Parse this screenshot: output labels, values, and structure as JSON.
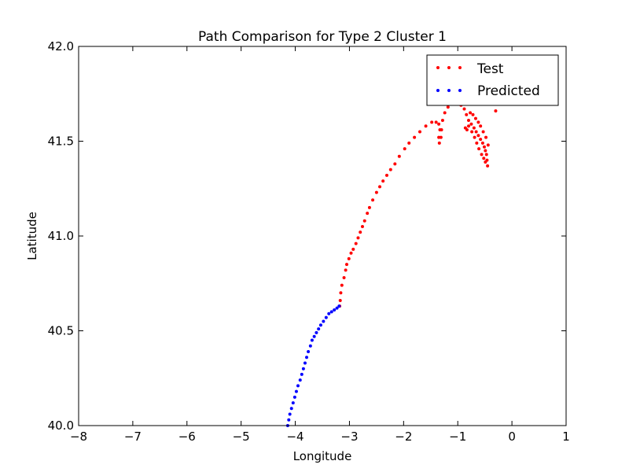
{
  "chart_data": {
    "type": "scatter",
    "title": "Path Comparison for Type 2 Cluster 1",
    "xlabel": "Longitude",
    "ylabel": "Latitude",
    "xlim": [
      -8,
      1
    ],
    "ylim": [
      40.0,
      42.0
    ],
    "xticks": [
      -8,
      -7,
      -6,
      -5,
      -4,
      -3,
      -2,
      -1,
      0,
      1
    ],
    "xtick_labels": [
      "−8",
      "−7",
      "−6",
      "−5",
      "−4",
      "−3",
      "−2",
      "−1",
      "0",
      "1"
    ],
    "yticks": [
      40.0,
      40.5,
      41.0,
      41.5,
      42.0
    ],
    "ytick_labels": [
      "40.0",
      "40.5",
      "41.0",
      "41.5",
      "42.0"
    ],
    "grid": false,
    "legend_position": "top-right",
    "series": [
      {
        "name": "Test",
        "color": "#ff0000",
        "points": [
          [
            -3.18,
            40.63
          ],
          [
            -3.17,
            40.66
          ],
          [
            -3.16,
            40.7
          ],
          [
            -3.14,
            40.74
          ],
          [
            -3.1,
            40.78
          ],
          [
            -3.07,
            40.82
          ],
          [
            -3.05,
            40.85
          ],
          [
            -3.01,
            40.88
          ],
          [
            -2.97,
            40.91
          ],
          [
            -2.93,
            40.93
          ],
          [
            -2.88,
            40.96
          ],
          [
            -2.84,
            40.99
          ],
          [
            -2.8,
            41.02
          ],
          [
            -2.76,
            41.05
          ],
          [
            -2.72,
            41.08
          ],
          [
            -2.67,
            41.12
          ],
          [
            -2.63,
            41.15
          ],
          [
            -2.57,
            41.19
          ],
          [
            -2.5,
            41.23
          ],
          [
            -2.44,
            41.26
          ],
          [
            -2.38,
            41.29
          ],
          [
            -2.31,
            41.32
          ],
          [
            -2.24,
            41.35
          ],
          [
            -2.16,
            41.38
          ],
          [
            -2.08,
            41.42
          ],
          [
            -1.98,
            41.46
          ],
          [
            -1.9,
            41.49
          ],
          [
            -1.8,
            41.52
          ],
          [
            -1.7,
            41.55
          ],
          [
            -1.59,
            41.58
          ],
          [
            -1.48,
            41.6
          ],
          [
            -1.4,
            41.6
          ],
          [
            -1.35,
            41.59
          ],
          [
            -1.33,
            41.56
          ],
          [
            -1.35,
            41.52
          ],
          [
            -1.34,
            41.49
          ],
          [
            -1.31,
            41.52
          ],
          [
            -1.3,
            41.56
          ],
          [
            -1.28,
            41.61
          ],
          [
            -1.24,
            41.65
          ],
          [
            -1.18,
            41.68
          ],
          [
            -1.1,
            41.7
          ],
          [
            -1.02,
            41.7
          ],
          [
            -0.94,
            41.69
          ],
          [
            -0.88,
            41.67
          ],
          [
            -0.84,
            41.64
          ],
          [
            -0.8,
            41.61
          ],
          [
            -0.75,
            41.59
          ],
          [
            -0.7,
            41.57
          ],
          [
            -0.66,
            41.55
          ],
          [
            -0.62,
            41.53
          ],
          [
            -0.58,
            41.51
          ],
          [
            -0.54,
            41.49
          ],
          [
            -0.51,
            41.47
          ],
          [
            -0.49,
            41.45
          ],
          [
            -0.47,
            41.43
          ],
          [
            -0.46,
            41.4
          ],
          [
            -0.45,
            41.37
          ],
          [
            -0.44,
            41.48
          ],
          [
            -0.48,
            41.52
          ],
          [
            -0.53,
            41.55
          ],
          [
            -0.58,
            41.58
          ],
          [
            -0.62,
            41.6
          ],
          [
            -0.67,
            41.62
          ],
          [
            -0.72,
            41.64
          ],
          [
            -0.77,
            41.65
          ],
          [
            -0.8,
            41.58
          ],
          [
            -0.83,
            41.56
          ],
          [
            -0.86,
            41.57
          ],
          [
            -0.74,
            41.55
          ],
          [
            -0.69,
            41.52
          ],
          [
            -0.65,
            41.49
          ],
          [
            -0.61,
            41.46
          ],
          [
            -0.56,
            41.43
          ],
          [
            -0.52,
            41.41
          ],
          [
            -0.49,
            41.39
          ],
          [
            -0.3,
            41.66
          ]
        ]
      },
      {
        "name": "Predicted",
        "color": "#0000ff",
        "points": [
          [
            -4.14,
            40.0
          ],
          [
            -4.12,
            40.03
          ],
          [
            -4.1,
            40.06
          ],
          [
            -4.07,
            40.09
          ],
          [
            -4.04,
            40.12
          ],
          [
            -4.01,
            40.15
          ],
          [
            -3.98,
            40.18
          ],
          [
            -3.95,
            40.21
          ],
          [
            -3.91,
            40.24
          ],
          [
            -3.88,
            40.27
          ],
          [
            -3.85,
            40.3
          ],
          [
            -3.82,
            40.33
          ],
          [
            -3.79,
            40.36
          ],
          [
            -3.76,
            40.39
          ],
          [
            -3.72,
            40.42
          ],
          [
            -3.69,
            40.45
          ],
          [
            -3.65,
            40.47
          ],
          [
            -3.61,
            40.49
          ],
          [
            -3.57,
            40.51
          ],
          [
            -3.53,
            40.53
          ],
          [
            -3.48,
            40.55
          ],
          [
            -3.43,
            40.57
          ],
          [
            -3.38,
            40.59
          ],
          [
            -3.33,
            40.6
          ],
          [
            -3.28,
            40.61
          ],
          [
            -3.23,
            40.62
          ],
          [
            -3.19,
            40.63
          ]
        ]
      }
    ]
  }
}
